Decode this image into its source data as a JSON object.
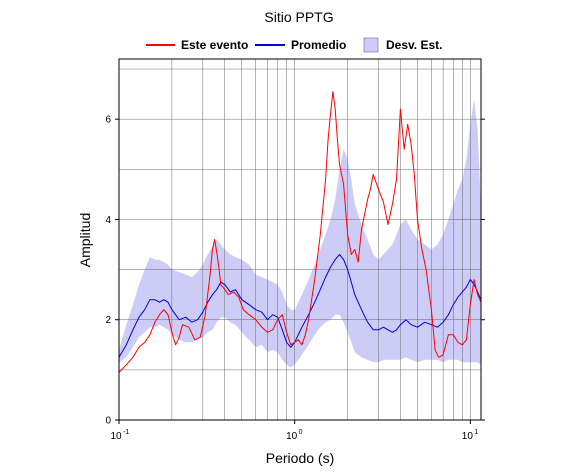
{
  "chart_data": {
    "type": "line",
    "title": "Sitio PPTG",
    "xlabel": "Periodo (s)",
    "ylabel": "Amplitud",
    "xscale": "log",
    "xlim": [
      0.1,
      11.5
    ],
    "ylim": [
      0,
      7.2
    ],
    "grid": true,
    "legend_position": "top",
    "x_ticks": [
      {
        "value": 0.1,
        "base": "10",
        "exp": "-1"
      },
      {
        "value": 1,
        "base": "10",
        "exp": "0"
      },
      {
        "value": 10,
        "base": "10",
        "exp": "1"
      }
    ],
    "y_ticks": [
      0,
      2,
      4,
      6
    ],
    "series": [
      {
        "name": "Este evento",
        "color": "#ff0000",
        "x": [
          0.1,
          0.11,
          0.12,
          0.13,
          0.14,
          0.15,
          0.16,
          0.17,
          0.18,
          0.19,
          0.2,
          0.21,
          0.22,
          0.23,
          0.25,
          0.27,
          0.29,
          0.31,
          0.33,
          0.34,
          0.35,
          0.36,
          0.37,
          0.38,
          0.4,
          0.42,
          0.45,
          0.48,
          0.51,
          0.55,
          0.6,
          0.65,
          0.7,
          0.75,
          0.8,
          0.85,
          0.9,
          0.95,
          1.0,
          1.05,
          1.1,
          1.15,
          1.2,
          1.3,
          1.4,
          1.5,
          1.55,
          1.6,
          1.65,
          1.7,
          1.75,
          1.8,
          1.9,
          2.0,
          2.1,
          2.2,
          2.3,
          2.4,
          2.5,
          2.6,
          2.7,
          2.8,
          3.0,
          3.2,
          3.4,
          3.6,
          3.8,
          4.0,
          4.2,
          4.4,
          4.6,
          4.8,
          5.0,
          5.3,
          5.6,
          6.0,
          6.3,
          6.6,
          7.0,
          7.5,
          8.0,
          8.5,
          9.0,
          9.5,
          10.0,
          10.5,
          11.0,
          11.5
        ],
        "values": [
          0.95,
          1.1,
          1.25,
          1.45,
          1.55,
          1.7,
          1.95,
          2.1,
          2.2,
          2.1,
          1.75,
          1.5,
          1.65,
          1.9,
          1.85,
          1.6,
          1.65,
          2.1,
          2.9,
          3.4,
          3.6,
          3.35,
          3.05,
          2.7,
          2.6,
          2.5,
          2.55,
          2.45,
          2.2,
          2.1,
          2.0,
          1.85,
          1.75,
          1.8,
          2.0,
          2.1,
          1.75,
          1.5,
          1.55,
          1.6,
          1.5,
          1.7,
          2.0,
          2.8,
          3.7,
          4.8,
          5.6,
          6.1,
          6.55,
          6.2,
          5.6,
          5.1,
          4.7,
          3.7,
          3.3,
          3.4,
          3.15,
          3.8,
          4.1,
          4.4,
          4.6,
          4.9,
          4.6,
          4.35,
          3.9,
          4.3,
          4.8,
          6.2,
          5.4,
          5.9,
          5.5,
          4.9,
          4.0,
          3.4,
          3.0,
          2.2,
          1.4,
          1.25,
          1.3,
          1.7,
          1.7,
          1.55,
          1.5,
          1.6,
          2.3,
          2.8,
          2.5,
          2.35
        ]
      },
      {
        "name": "Promedio",
        "color": "#0000dd",
        "x": [
          0.1,
          0.11,
          0.12,
          0.13,
          0.14,
          0.15,
          0.16,
          0.17,
          0.18,
          0.19,
          0.2,
          0.22,
          0.24,
          0.26,
          0.28,
          0.3,
          0.32,
          0.34,
          0.36,
          0.38,
          0.4,
          0.43,
          0.46,
          0.5,
          0.55,
          0.6,
          0.65,
          0.7,
          0.75,
          0.8,
          0.85,
          0.9,
          0.95,
          1.0,
          1.1,
          1.2,
          1.3,
          1.4,
          1.5,
          1.6,
          1.7,
          1.8,
          1.9,
          2.0,
          2.1,
          2.2,
          2.4,
          2.6,
          2.8,
          3.0,
          3.2,
          3.4,
          3.6,
          3.8,
          4.0,
          4.3,
          4.6,
          5.0,
          5.5,
          6.0,
          6.5,
          7.0,
          7.5,
          8.0,
          8.5,
          9.0,
          9.5,
          10.0,
          10.5,
          11.0,
          11.5
        ],
        "values": [
          1.25,
          1.5,
          1.8,
          2.05,
          2.2,
          2.4,
          2.4,
          2.35,
          2.4,
          2.35,
          2.2,
          2.0,
          2.05,
          1.95,
          2.0,
          2.15,
          2.35,
          2.5,
          2.6,
          2.75,
          2.7,
          2.55,
          2.6,
          2.4,
          2.3,
          2.2,
          2.15,
          2.0,
          2.1,
          2.05,
          1.8,
          1.55,
          1.45,
          1.55,
          1.85,
          2.1,
          2.35,
          2.6,
          2.85,
          3.05,
          3.2,
          3.3,
          3.2,
          3.0,
          2.75,
          2.5,
          2.2,
          1.95,
          1.8,
          1.8,
          1.85,
          1.8,
          1.75,
          1.8,
          1.9,
          2.0,
          1.9,
          1.85,
          1.95,
          1.9,
          1.85,
          1.95,
          2.1,
          2.3,
          2.45,
          2.55,
          2.65,
          2.8,
          2.7,
          2.55,
          2.4
        ]
      },
      {
        "name": "Desv. Est.",
        "color": "#ccccf7",
        "x": [
          0.1,
          0.11,
          0.12,
          0.13,
          0.14,
          0.15,
          0.16,
          0.17,
          0.18,
          0.19,
          0.2,
          0.22,
          0.24,
          0.26,
          0.28,
          0.3,
          0.32,
          0.34,
          0.36,
          0.38,
          0.4,
          0.43,
          0.46,
          0.5,
          0.55,
          0.6,
          0.65,
          0.7,
          0.75,
          0.8,
          0.85,
          0.9,
          0.95,
          1.0,
          1.1,
          1.2,
          1.3,
          1.4,
          1.5,
          1.6,
          1.7,
          1.8,
          1.9,
          2.0,
          2.1,
          2.2,
          2.4,
          2.6,
          2.8,
          3.0,
          3.2,
          3.4,
          3.6,
          3.8,
          4.0,
          4.3,
          4.6,
          5.0,
          5.5,
          6.0,
          6.5,
          7.0,
          7.5,
          8.0,
          8.5,
          9.0,
          9.5,
          10.0,
          10.5,
          11.0,
          11.5
        ],
        "upper": [
          1.4,
          1.9,
          2.3,
          2.7,
          3.0,
          3.25,
          3.2,
          3.2,
          3.15,
          3.1,
          3.0,
          2.95,
          2.9,
          2.85,
          2.95,
          3.1,
          3.3,
          3.45,
          3.6,
          3.5,
          3.4,
          3.3,
          3.25,
          3.2,
          3.1,
          2.9,
          2.85,
          2.8,
          2.75,
          2.7,
          2.55,
          2.3,
          2.2,
          2.2,
          2.5,
          2.8,
          3.1,
          3.4,
          3.7,
          4.0,
          4.4,
          5.0,
          5.4,
          5.2,
          4.8,
          4.3,
          3.9,
          3.6,
          3.3,
          3.2,
          3.3,
          3.4,
          3.5,
          3.7,
          3.9,
          4.0,
          3.8,
          3.6,
          3.5,
          3.4,
          3.5,
          3.7,
          4.0,
          4.3,
          4.6,
          4.8,
          5.2,
          5.9,
          6.4,
          5.8,
          4.2
        ],
        "lower": [
          1.15,
          1.25,
          1.45,
          1.65,
          1.75,
          1.85,
          1.85,
          1.9,
          1.85,
          1.8,
          1.7,
          1.6,
          1.55,
          1.55,
          1.6,
          1.65,
          1.75,
          1.8,
          1.95,
          2.05,
          2.05,
          1.95,
          1.9,
          1.75,
          1.6,
          1.45,
          1.5,
          1.35,
          1.4,
          1.35,
          1.2,
          1.1,
          1.05,
          1.1,
          1.3,
          1.5,
          1.7,
          1.85,
          1.95,
          2.0,
          2.1,
          2.1,
          1.95,
          1.75,
          1.55,
          1.35,
          1.25,
          1.2,
          1.15,
          1.15,
          1.2,
          1.2,
          1.2,
          1.2,
          1.2,
          1.25,
          1.2,
          1.15,
          1.2,
          1.2,
          1.2,
          1.15,
          1.2,
          1.2,
          1.2,
          1.15,
          1.15,
          1.15,
          1.15,
          1.15,
          1.1
        ]
      }
    ]
  }
}
